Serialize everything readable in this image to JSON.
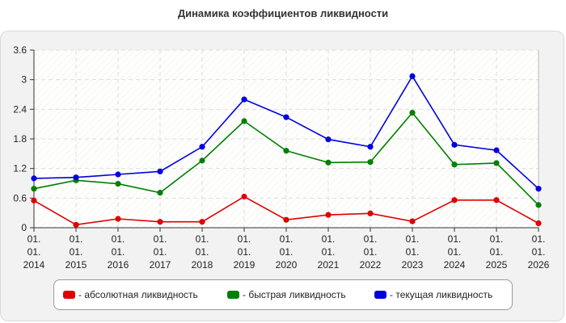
{
  "chart_data": {
    "type": "line",
    "title": "Динамика коэффициентов ликвидности",
    "categories": [
      "01.\n01.\n2014",
      "01.\n01.\n2015",
      "01.\n01.\n2016",
      "01.\n01.\n2017",
      "01.\n01.\n2018",
      "01.\n01.\n2019",
      "01.\n01.\n2020",
      "01.\n01.\n2021",
      "01.\n01.\n2022",
      "01.\n01.\n2023",
      "01.\n01.\n2024",
      "01.\n01.\n2025",
      "01.\n01.\n2026"
    ],
    "y_ticks": [
      "0",
      "0.6",
      "1.2",
      "1.8",
      "2.4",
      "3",
      "3.6"
    ],
    "ylim": [
      0,
      3.6
    ],
    "grid": true,
    "legend_position": "bottom",
    "series": [
      {
        "name": "- абсолютная ликвидность",
        "color": "#e00000",
        "values": [
          0.55,
          0.06,
          0.18,
          0.12,
          0.12,
          0.63,
          0.16,
          0.26,
          0.29,
          0.13,
          0.56,
          0.56,
          0.09
        ]
      },
      {
        "name": "- быстрая ликвидность",
        "color": "#008000",
        "values": [
          0.79,
          0.96,
          0.89,
          0.71,
          1.36,
          2.16,
          1.56,
          1.32,
          1.33,
          2.33,
          1.28,
          1.31,
          0.46
        ]
      },
      {
        "name": "- текущая ликвидность",
        "color": "#0000e0",
        "values": [
          1.0,
          1.02,
          1.08,
          1.14,
          1.64,
          2.6,
          2.24,
          1.79,
          1.64,
          3.07,
          1.68,
          1.57,
          0.79
        ]
      }
    ]
  }
}
